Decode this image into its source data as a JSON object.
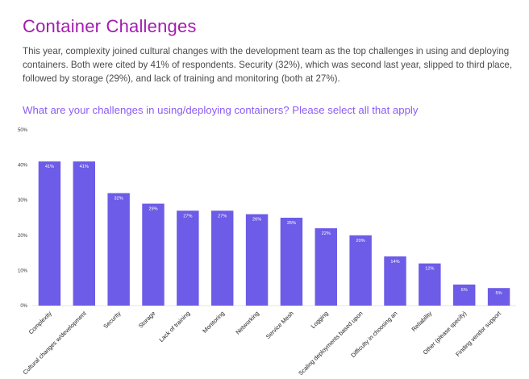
{
  "header": {
    "title": "Container Challenges",
    "description": "This year, complexity joined cultural changes with the development team as the top challenges in using and deploying containers. Both were cited by 41% of respondents. Security (32%), which was second last year, slipped to third place, followed by storage (29%), and lack of training and monitoring (both at 27%)."
  },
  "chart_data": {
    "type": "bar",
    "title": "What are your challenges in using/deploying containers? Please select all that apply",
    "categories": [
      "Complexity",
      "Cultural changes w/development",
      "Security",
      "Storage",
      "Lack of training",
      "Monitoring",
      "Networking",
      "Service Mesh",
      "Logging",
      "Scaling deployments based upon",
      "Difficulty in choosing an",
      "Reliability",
      "Other (please specify)",
      "Finding vendor support"
    ],
    "values": [
      41,
      41,
      32,
      29,
      27,
      27,
      26,
      25,
      22,
      20,
      14,
      12,
      6,
      5
    ],
    "value_labels": [
      "41%",
      "41%",
      "32%",
      "29%",
      "27%",
      "27%",
      "26%",
      "25%",
      "22%",
      "20%",
      "14%",
      "12%",
      "6%",
      "5%"
    ],
    "ylim": [
      0,
      50
    ],
    "yticks": [
      "0%",
      "10%",
      "20%",
      "30%",
      "40%",
      "50%"
    ],
    "bar_color": "#6c5ce7",
    "grid": false
  }
}
